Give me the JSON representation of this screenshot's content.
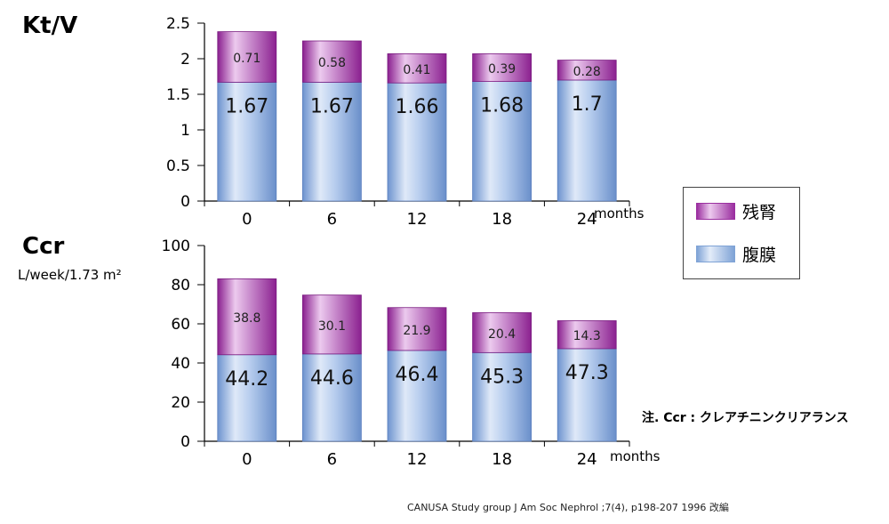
{
  "chart_data": [
    {
      "type": "bar",
      "stacked": true,
      "title": "Kt/V",
      "unit": "",
      "xunit": "months",
      "categories": [
        "0",
        "6",
        "12",
        "18",
        "24"
      ],
      "series": [
        {
          "name": "腹膜",
          "values": [
            1.67,
            1.67,
            1.66,
            1.68,
            1.7
          ]
        },
        {
          "name": "残腎",
          "values": [
            0.71,
            0.58,
            0.41,
            0.39,
            0.28
          ]
        }
      ],
      "ylim": [
        0,
        2.5
      ],
      "yticks": [
        "0",
        "0.5",
        "1",
        "1.5",
        "2",
        "2.5"
      ],
      "grid": false
    },
    {
      "type": "bar",
      "stacked": true,
      "title": "Ccr",
      "unit": "L/week/1.73 m²",
      "xunit": "months",
      "categories": [
        "0",
        "6",
        "12",
        "18",
        "24"
      ],
      "series": [
        {
          "name": "腹膜",
          "values": [
            44.2,
            44.6,
            46.4,
            45.3,
            47.3
          ]
        },
        {
          "name": "残腎",
          "values": [
            38.8,
            30.1,
            21.9,
            20.4,
            14.3
          ]
        }
      ],
      "ylim": [
        0,
        100
      ],
      "yticks": [
        "0",
        "20",
        "40",
        "60",
        "80",
        "100"
      ],
      "grid": false
    }
  ],
  "legend": {
    "placement": "right",
    "items": [
      {
        "label": "残腎",
        "color": "#9b2fa0"
      },
      {
        "label": "腹膜",
        "color": "#7fa3d6"
      }
    ]
  },
  "note": "注. Ccr : クレアチニンクリアランス",
  "source": "CANUSA Study group  J Am Soc Nephrol ;7(4), p198-207 1996 改編"
}
